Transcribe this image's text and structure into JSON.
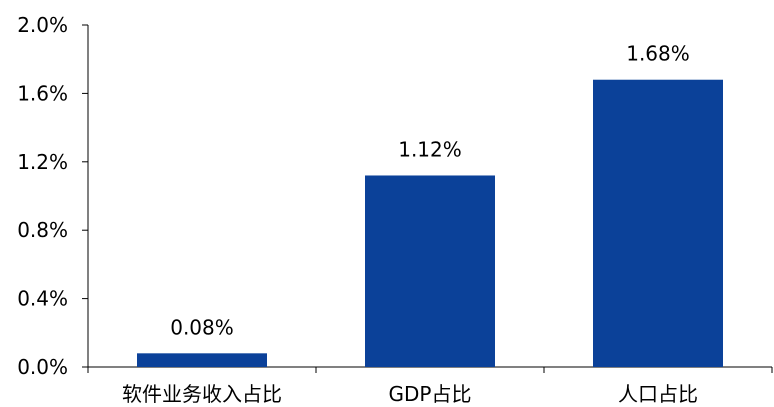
{
  "chart_data": {
    "type": "bar",
    "categories": [
      "软件业务收入占比",
      "GDP占比",
      "人口占比"
    ],
    "values": [
      0.08,
      1.12,
      1.68
    ],
    "data_labels": [
      "0.08%",
      "1.12%",
      "1.68%"
    ],
    "y_ticks": [
      0.0,
      0.4,
      0.8,
      1.2,
      1.6,
      2.0
    ],
    "y_tick_labels": [
      "0.0%",
      "0.4%",
      "0.8%",
      "1.2%",
      "1.6%",
      "2.0%"
    ],
    "ylim": [
      0,
      2.0
    ],
    "grid": false,
    "legend": "none",
    "bar_color": "#0B4199",
    "axis_color": "#000000"
  }
}
